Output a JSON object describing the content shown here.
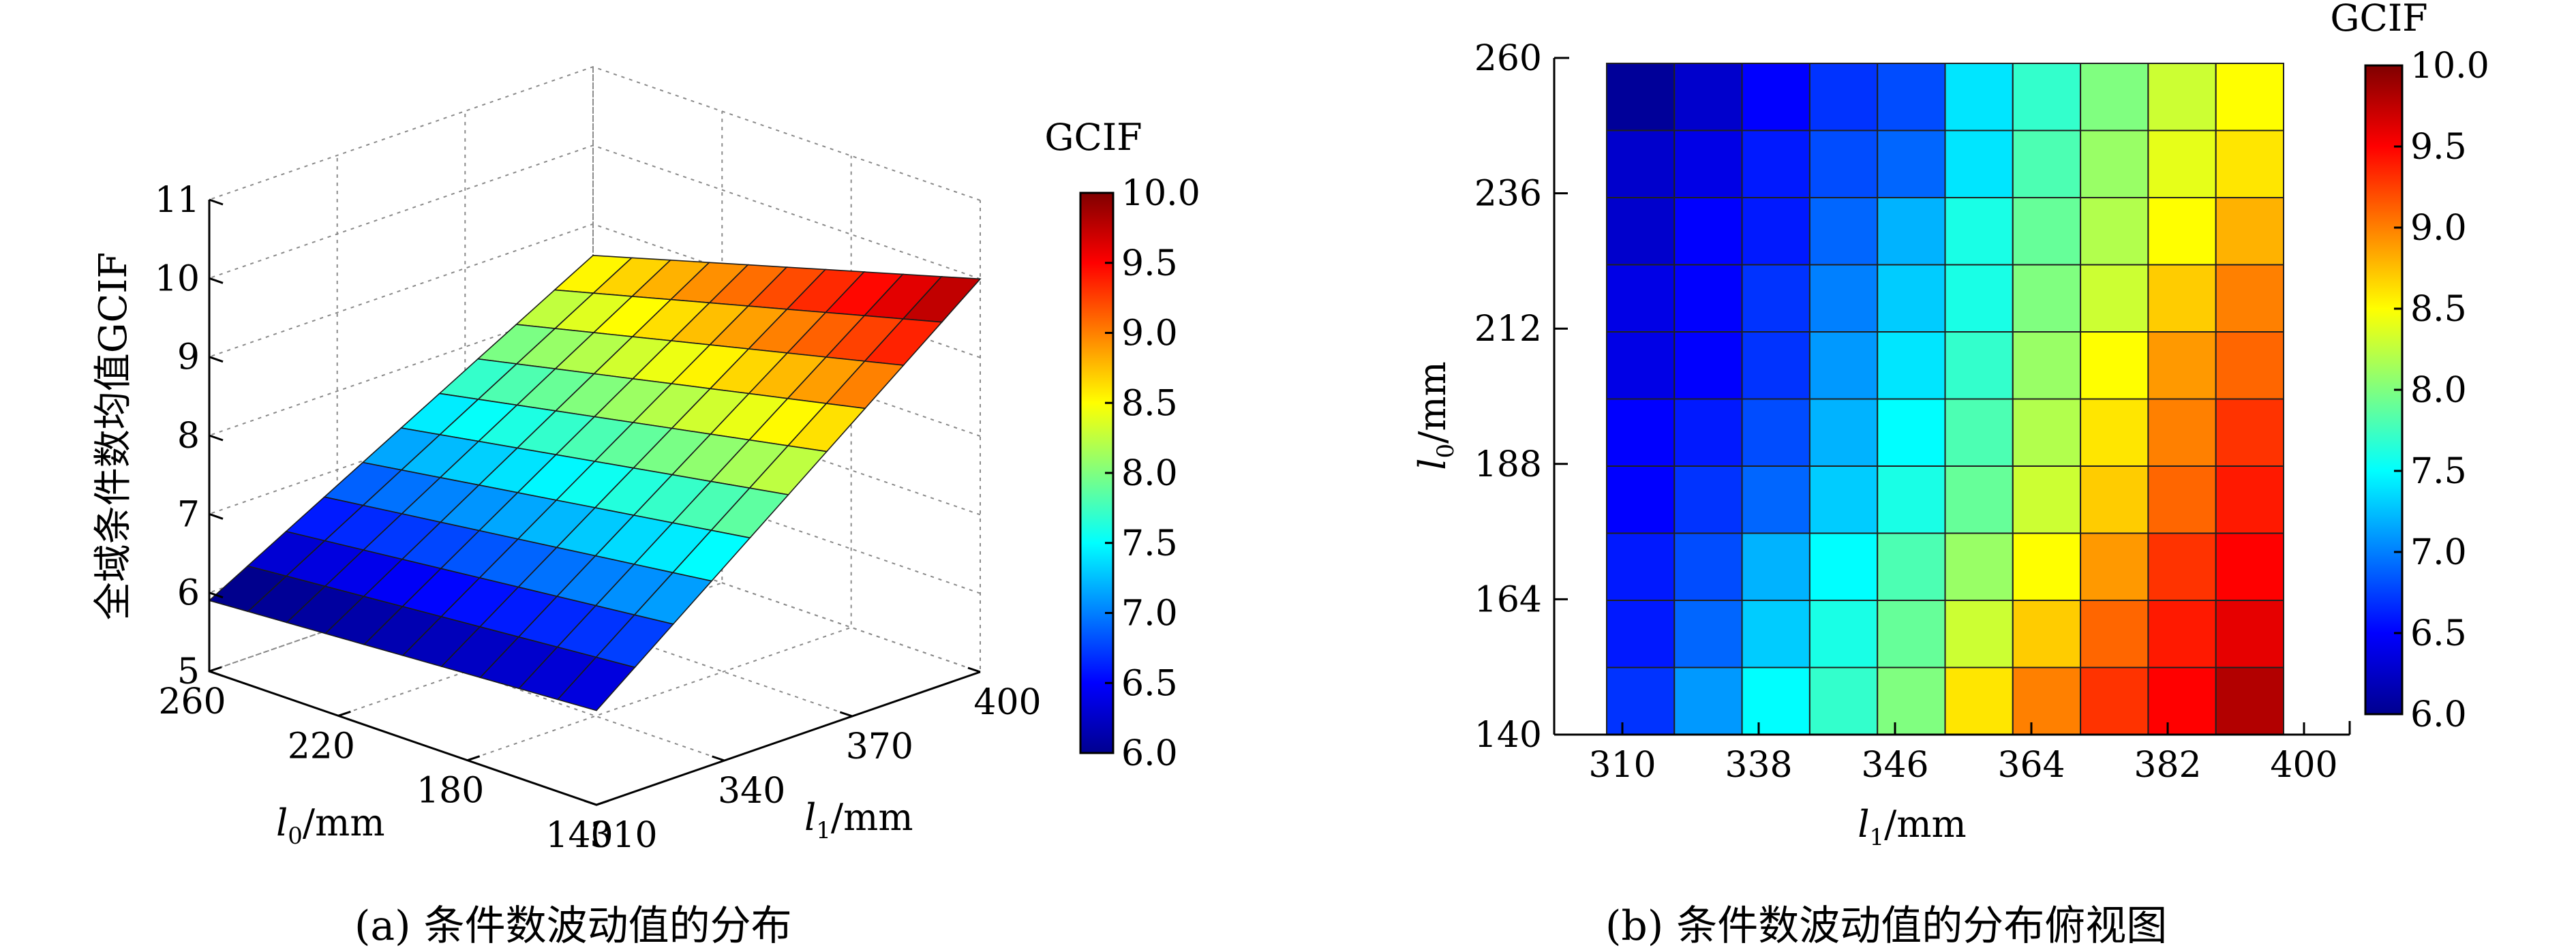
{
  "figure": {
    "caption_a": "(a) 条件数波动值的分布",
    "caption_b": "(b) 条件数波动值的分布俯视图"
  },
  "chart_data": [
    {
      "type": "surface",
      "panel": "a",
      "zlabel": "全域条件数均值GCIF",
      "xlabel_var": "l",
      "xlabel_sub": "1",
      "xlabel_unit": "/mm",
      "ylabel_var": "l",
      "ylabel_sub": "0",
      "ylabel_unit": "/mm",
      "x_range": [
        310,
        400
      ],
      "y_range": [
        140,
        260
      ],
      "zlim": [
        5,
        11
      ],
      "x_ticks": [
        "310",
        "340",
        "370",
        "400"
      ],
      "y_ticks": [
        "140",
        "180",
        "220",
        "260"
      ],
      "z_ticks": [
        "5",
        "6",
        "7",
        "8",
        "9",
        "10",
        "11"
      ],
      "grid_x": 11,
      "grid_y": 11,
      "corner_values": {
        "x310_y140": 6.2,
        "x400_y140": 10.0,
        "x310_y260": 5.9,
        "x400_y260": 8.6
      },
      "colorbar": {
        "title": "GCIF",
        "min": 6.0,
        "max": 10.0,
        "ticks": [
          "10.0",
          "9.5",
          "9.0",
          "8.5",
          "8.0",
          "7.5",
          "7.0",
          "6.5",
          "6.0"
        ]
      }
    },
    {
      "type": "heatmap",
      "panel": "b",
      "xlabel_var": "l",
      "xlabel_sub": "1",
      "xlabel_unit": "/mm",
      "ylabel_var": "l",
      "ylabel_sub": "0",
      "ylabel_unit": "/mm",
      "x_ticks": [
        "310",
        "338",
        "346",
        "364",
        "382",
        "400"
      ],
      "y_ticks": [
        "260",
        "236",
        "212",
        "188",
        "164",
        "140"
      ],
      "rows": [
        [
          6.1,
          6.3,
          6.5,
          6.7,
          6.8,
          7.4,
          7.7,
          8.0,
          8.3,
          8.5
        ],
        [
          6.3,
          6.4,
          6.6,
          6.8,
          6.9,
          7.4,
          7.8,
          8.1,
          8.4,
          8.6
        ],
        [
          6.3,
          6.5,
          6.6,
          6.9,
          7.2,
          7.6,
          7.9,
          8.2,
          8.5,
          8.8
        ],
        [
          6.4,
          6.5,
          6.7,
          7.0,
          7.3,
          7.6,
          8.0,
          8.3,
          8.7,
          9.0
        ],
        [
          6.4,
          6.5,
          6.7,
          7.1,
          7.4,
          7.7,
          8.1,
          8.5,
          8.9,
          9.1
        ],
        [
          6.5,
          6.6,
          6.8,
          7.2,
          7.5,
          7.8,
          8.2,
          8.6,
          9.0,
          9.3
        ],
        [
          6.5,
          6.7,
          6.9,
          7.3,
          7.6,
          7.9,
          8.3,
          8.7,
          9.1,
          9.4
        ],
        [
          6.6,
          6.8,
          7.2,
          7.5,
          7.8,
          8.1,
          8.5,
          8.9,
          9.3,
          9.5
        ],
        [
          6.6,
          6.9,
          7.3,
          7.6,
          7.9,
          8.3,
          8.7,
          9.1,
          9.4,
          9.6
        ],
        [
          6.7,
          7.1,
          7.5,
          7.7,
          8.0,
          8.6,
          9.0,
          9.3,
          9.5,
          9.8
        ]
      ],
      "colorbar": {
        "title": "GCIF",
        "min": 6.0,
        "max": 10.0,
        "ticks": [
          "10.0",
          "9.5",
          "9.0",
          "8.5",
          "8.0",
          "7.5",
          "7.0",
          "6.5",
          "6.0"
        ]
      }
    }
  ]
}
